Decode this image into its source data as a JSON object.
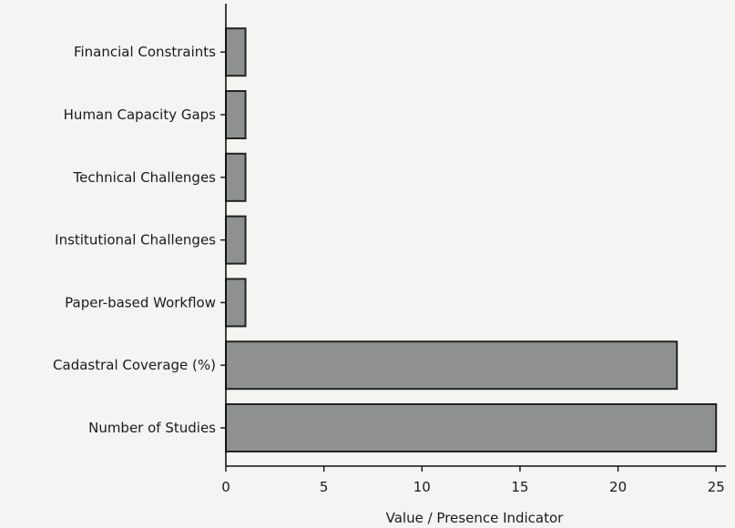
{
  "chart_data": {
    "type": "bar",
    "orientation": "horizontal",
    "categories": [
      "Number of Studies",
      "Cadastral Coverage (%)",
      "Paper-based Workflow",
      "Institutional Challenges",
      "Technical Challenges",
      "Human Capacity Gaps",
      "Financial Constraints"
    ],
    "values": [
      25,
      23,
      1,
      1,
      1,
      1,
      1
    ],
    "xlabel": "Value / Presence Indicator",
    "ylabel": "",
    "xlim": [
      0,
      25.5
    ],
    "xticks": [
      0,
      5,
      10,
      15,
      20,
      25
    ],
    "grid": false,
    "colors": {
      "bar_fill": "#8f9190",
      "bar_edge": "#222222",
      "axis": "#111111",
      "text": "#1a1a1a",
      "background": "#f4f4f2"
    }
  }
}
